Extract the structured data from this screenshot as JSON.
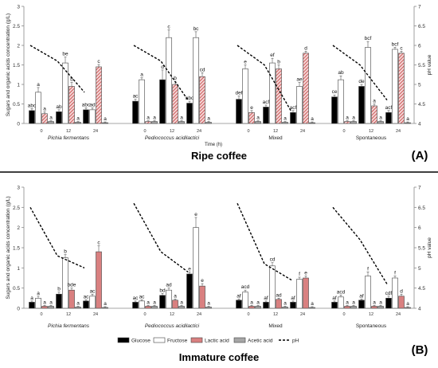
{
  "chart_data": [
    {
      "type": "bar",
      "panel_letter": "(A)",
      "subtitle": "Ripe coffee",
      "ylabel": "Sugars and organic acids concentration (g/L)",
      "ylabel_right": "pH value",
      "xlabel": "Time (h)",
      "ylim": [
        0,
        3
      ],
      "ylim_right": [
        4,
        7
      ],
      "yticks": [
        "0",
        "0.5",
        "1",
        "1.5",
        "2",
        "2.5",
        "3"
      ],
      "yticks_right": [
        "4",
        "4.5",
        "5",
        "5.5",
        "6",
        "6.5",
        "7"
      ],
      "groups": [
        {
          "name": "Pichia fermentans",
          "times": [
            "0",
            "12",
            "24"
          ],
          "values": {
            "glucose": [
              0.33,
              0.3,
              0.35
            ],
            "fructose": [
              0.8,
              1.55,
              0.35
            ],
            "lactic": [
              0.25,
              0.95,
              1.45
            ],
            "acetic": [
              0.05,
              0.03,
              0.02
            ]
          },
          "errors": {
            "glucose": [
              0.05,
              0.05,
              0.05
            ],
            "fructose": [
              0.12,
              0.15,
              0.05
            ],
            "lactic": [
              0.05,
              0.1,
              0.06
            ],
            "acetic": [
              0.02,
              0.02,
              0.02
            ]
          },
          "letters": {
            "glucose": [
              "abc",
              "ab",
              "abc"
            ],
            "fructose": [
              "a",
              "be",
              "ad"
            ],
            "lactic": [
              "a",
              "b",
              "c"
            ],
            "acetic": [
              "a",
              "a",
              "a"
            ]
          },
          "ph": [
            6.0,
            5.6,
            4.8
          ]
        },
        {
          "name": "Pediococcus acidilactici",
          "times": [
            "0",
            "12",
            "24"
          ],
          "values": {
            "glucose": [
              0.57,
              1.12,
              0.52
            ],
            "fructose": [
              1.12,
              2.2,
              2.2
            ],
            "lactic": [
              0.05,
              1.0,
              1.2
            ],
            "acetic": [
              0.05,
              0.05,
              0.03
            ]
          },
          "errors": {
            "glucose": [
              0.05,
              0.25,
              0.05
            ],
            "fructose": [
              0.05,
              0.2,
              0.15
            ],
            "lactic": [
              0.02,
              0.08,
              0.1
            ],
            "acetic": [
              0.02,
              0.02,
              0.02
            ]
          },
          "letters": {
            "glucose": [
              "ac",
              "d",
              "abc"
            ],
            "fructose": [
              "a",
              "c",
              "bc"
            ],
            "lactic": [
              "a",
              "b",
              "cd"
            ],
            "acetic": [
              "a",
              "a",
              "a"
            ]
          },
          "ph": [
            6.0,
            5.6,
            4.6
          ]
        },
        {
          "name": "Mixed",
          "times": [
            "0",
            "12",
            "24"
          ],
          "values": {
            "glucose": [
              0.62,
              0.42,
              0.28
            ],
            "fructose": [
              1.4,
              1.55,
              0.95
            ],
            "lactic": [
              0.28,
              1.4,
              1.8
            ],
            "acetic": [
              0.05,
              0.03,
              0.02
            ]
          },
          "errors": {
            "glucose": [
              0.08,
              0.05,
              0.05
            ],
            "fructose": [
              0.1,
              0.12,
              0.1
            ],
            "lactic": [
              0.05,
              0.1,
              0.05
            ],
            "acetic": [
              0.02,
              0.02,
              0.02
            ]
          },
          "letters": {
            "glucose": [
              "def",
              "acf",
              "acf"
            ],
            "fructose": [
              "e",
              "ef",
              "ae"
            ],
            "lactic": [
              "e",
              "b",
              "d"
            ],
            "acetic": [
              "a",
              "a",
              "a"
            ]
          },
          "ph": [
            6.0,
            5.5,
            4.3
          ]
        },
        {
          "name": "Spontaneous",
          "times": [
            "0",
            "12",
            "24"
          ],
          "values": {
            "glucose": [
              0.68,
              0.95,
              0.28
            ],
            "fructose": [
              1.12,
              1.95,
              1.9
            ],
            "lactic": [
              0.05,
              0.45,
              1.8
            ],
            "acetic": [
              0.05,
              0.05,
              0.02
            ]
          },
          "errors": {
            "glucose": [
              0.05,
              0.05,
              0.05
            ],
            "fructose": [
              0.1,
              0.15,
              0.05
            ],
            "lactic": [
              0.02,
              0.05,
              0.05
            ],
            "acetic": [
              0.02,
              0.02,
              0.02
            ]
          },
          "letters": {
            "glucose": [
              "ce",
              "de",
              "acf"
            ],
            "fructose": [
              "ab",
              "bcf",
              "bcf"
            ],
            "lactic": [
              "a",
              "a",
              "c"
            ],
            "acetic": [
              "a",
              "a",
              "a"
            ]
          },
          "ph": [
            6.0,
            5.5,
            4.6
          ]
        }
      ]
    },
    {
      "type": "bar",
      "panel_letter": "(B)",
      "subtitle": "Immature coffee",
      "ylabel": "Sugars and organic acids concentration (g/L)",
      "ylabel_right": "pH value",
      "xlabel": "",
      "ylim": [
        0,
        3
      ],
      "ylim_right": [
        4,
        7
      ],
      "yticks": [
        "0",
        "0.5",
        "1",
        "1.5",
        "2",
        "2.5",
        "3"
      ],
      "yticks_right": [
        "4",
        "4.5",
        "5",
        "5.5",
        "6",
        "6.5",
        "7"
      ],
      "groups": [
        {
          "name": "Pichia fermentans",
          "times": [
            "0",
            "12",
            "24"
          ],
          "values": {
            "glucose": [
              0.15,
              0.35,
              0.18
            ],
            "fructose": [
              0.25,
              1.25,
              0.3
            ],
            "lactic": [
              0.05,
              0.45,
              1.4
            ],
            "acetic": [
              0.05,
              0.03,
              0.02
            ]
          },
          "errors": {
            "glucose": [
              0.03,
              0.05,
              0.03
            ],
            "fructose": [
              0.05,
              0.08,
              0.05
            ],
            "lactic": [
              0.02,
              0.05,
              0.15
            ],
            "acetic": [
              0.02,
              0.02,
              0.02
            ]
          },
          "letters": {
            "glucose": [
              "a",
              "b",
              "ac"
            ],
            "fructose": [
              "a",
              "b",
              "ac"
            ],
            "lactic": [
              "a",
              "bde",
              "c"
            ],
            "acetic": [
              "a",
              "a",
              "a"
            ]
          },
          "ph": [
            6.5,
            5.3,
            5.0
          ]
        },
        {
          "name": "Pediococcus acidilactici",
          "times": [
            "0",
            "12",
            "24"
          ],
          "values": {
            "glucose": [
              0.15,
              0.32,
              0.85
            ],
            "fructose": [
              0.18,
              0.45,
              2.0
            ],
            "lactic": [
              0.05,
              0.2,
              0.55
            ],
            "acetic": [
              0.05,
              0.05,
              0.03
            ]
          },
          "errors": {
            "glucose": [
              0.03,
              0.05,
              0.05
            ],
            "fructose": [
              0.03,
              0.05,
              0.25
            ],
            "lactic": [
              0.02,
              0.03,
              0.06
            ],
            "acetic": [
              0.02,
              0.02,
              0.02
            ]
          },
          "letters": {
            "glucose": [
              "ac",
              "bd",
              "e"
            ],
            "fructose": [
              "ac",
              "ad",
              "e"
            ],
            "lactic": [
              "a",
              "a",
              "e"
            ],
            "acetic": [
              "a",
              "a",
              "a"
            ]
          },
          "ph": [
            6.6,
            5.4,
            4.9
          ]
        },
        {
          "name": "Mixed",
          "times": [
            "0",
            "12",
            "24"
          ],
          "values": {
            "glucose": [
              0.2,
              0.15,
              0.15
            ],
            "fructose": [
              0.4,
              1.05,
              0.72
            ],
            "lactic": [
              0.05,
              0.22,
              0.75
            ],
            "acetic": [
              0.05,
              0.03,
              0.02
            ]
          },
          "errors": {
            "glucose": [
              0.03,
              0.03,
              0.03
            ],
            "fructose": [
              0.05,
              0.08,
              0.05
            ],
            "lactic": [
              0.02,
              0.03,
              0.05
            ],
            "acetic": [
              0.02,
              0.02,
              0.02
            ]
          },
          "letters": {
            "glucose": [
              "af",
              "af",
              "af"
            ],
            "fructose": [
              "acd",
              "cd",
              "f"
            ],
            "lactic": [
              "a",
              "ad",
              "e"
            ],
            "acetic": [
              "a",
              "a",
              "a"
            ]
          },
          "ph": [
            6.6,
            5.1,
            4.7
          ]
        },
        {
          "name": "Spontaneous",
          "times": [
            "0",
            "12",
            "24"
          ],
          "values": {
            "glucose": [
              0.15,
              0.2,
              0.25
            ],
            "fructose": [
              0.28,
              0.8,
              0.75
            ],
            "lactic": [
              0.05,
              0.05,
              0.3
            ],
            "acetic": [
              0.05,
              0.05,
              0.02
            ]
          },
          "errors": {
            "glucose": [
              0.03,
              0.03,
              0.05
            ],
            "fructose": [
              0.05,
              0.1,
              0.05
            ],
            "lactic": [
              0.02,
              0.02,
              0.05
            ],
            "acetic": [
              0.02,
              0.02,
              0.02
            ]
          },
          "letters": {
            "glucose": [
              "af",
              "af",
              "cdf"
            ],
            "fructose": [
              "acd",
              "f",
              "f"
            ],
            "lactic": [
              "a",
              "a",
              "d"
            ],
            "acetic": [
              "a",
              "a",
              "a"
            ]
          },
          "ph": [
            6.5,
            5.7,
            4.6
          ]
        }
      ]
    }
  ],
  "legend": {
    "items": [
      {
        "key": "glucose",
        "label": "Glucose",
        "color": "#000000"
      },
      {
        "key": "fructose",
        "label": "Fructose",
        "color": "#ffffff"
      },
      {
        "key": "lactic",
        "label": "Lactic acid",
        "color": "#d98080"
      },
      {
        "key": "acetic",
        "label": "Acetic acid",
        "color": "#a6a6a6"
      },
      {
        "key": "ph",
        "label": "pH",
        "color": "#000000"
      }
    ]
  }
}
